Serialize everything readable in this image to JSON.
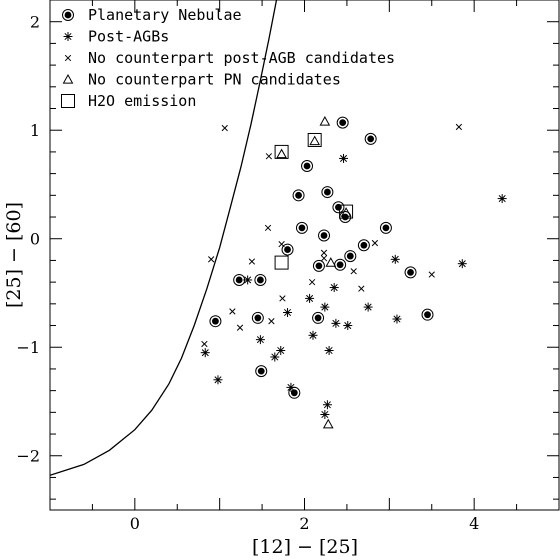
{
  "chart_data": {
    "type": "scatter",
    "xlabel": "[12] − [25]",
    "ylabel": "[25] − [60]",
    "xlim": [
      -1,
      5
    ],
    "ylim": [
      -2.5,
      2.2
    ],
    "xticks": [
      0,
      2,
      4
    ],
    "yticks": [
      -2,
      -1,
      0,
      1,
      2
    ],
    "legend_position": "top-left",
    "grid": false,
    "series": [
      {
        "name": "Planetary Nebulae",
        "marker": "circled-dot",
        "points": [
          [
            2.45,
            1.07
          ],
          [
            2.78,
            0.92
          ],
          [
            2.03,
            0.67
          ],
          [
            1.93,
            0.4
          ],
          [
            2.27,
            0.43
          ],
          [
            2.4,
            0.29
          ],
          [
            2.48,
            0.2
          ],
          [
            1.97,
            0.1
          ],
          [
            2.96,
            0.1
          ],
          [
            1.8,
            -0.1
          ],
          [
            2.23,
            0.03
          ],
          [
            2.7,
            -0.06
          ],
          [
            2.54,
            -0.16
          ],
          [
            2.17,
            -0.25
          ],
          [
            2.42,
            -0.24
          ],
          [
            3.25,
            -0.31
          ],
          [
            1.23,
            -0.38
          ],
          [
            1.48,
            -0.38
          ],
          [
            0.95,
            -0.76
          ],
          [
            1.45,
            -0.73
          ],
          [
            2.16,
            -0.73
          ],
          [
            3.45,
            -0.7
          ],
          [
            1.49,
            -1.22
          ],
          [
            1.88,
            -1.42
          ]
        ]
      },
      {
        "name": "Post-AGBs",
        "marker": "asterisk",
        "points": [
          [
            2.46,
            0.74
          ],
          [
            4.33,
            0.37
          ],
          [
            1.33,
            -0.38
          ],
          [
            3.07,
            -0.19
          ],
          [
            3.86,
            -0.23
          ],
          [
            2.06,
            -0.55
          ],
          [
            2.35,
            -0.45
          ],
          [
            2.24,
            -0.63
          ],
          [
            2.75,
            -0.63
          ],
          [
            1.48,
            -0.93
          ],
          [
            1.8,
            -0.68
          ],
          [
            2.1,
            -0.89
          ],
          [
            2.37,
            -0.78
          ],
          [
            2.51,
            -0.8
          ],
          [
            3.09,
            -0.74
          ],
          [
            1.72,
            -1.03
          ],
          [
            1.65,
            -1.09
          ],
          [
            0.83,
            -1.05
          ],
          [
            2.29,
            -1.03
          ],
          [
            0.98,
            -1.3
          ],
          [
            1.84,
            -1.37
          ],
          [
            2.27,
            -1.53
          ],
          [
            2.24,
            -1.62
          ]
        ]
      },
      {
        "name": "No counterpart post-AGB candidates",
        "marker": "cross",
        "points": [
          [
            1.06,
            1.02
          ],
          [
            1.58,
            0.76
          ],
          [
            3.82,
            1.03
          ],
          [
            1.57,
            0.1
          ],
          [
            1.73,
            -0.05
          ],
          [
            0.9,
            -0.19
          ],
          [
            1.38,
            -0.21
          ],
          [
            2.23,
            -0.13
          ],
          [
            2.83,
            -0.04
          ],
          [
            2.58,
            -0.3
          ],
          [
            2.67,
            -0.46
          ],
          [
            3.5,
            -0.33
          ],
          [
            1.74,
            -0.55
          ],
          [
            1.15,
            -0.67
          ],
          [
            1.24,
            -0.82
          ],
          [
            1.61,
            -0.76
          ],
          [
            0.82,
            -0.97
          ],
          [
            2.09,
            -0.4
          ],
          [
            2.23,
            -0.18
          ]
        ]
      },
      {
        "name": "No counterpart PN candidates",
        "marker": "triangle",
        "points": [
          [
            2.24,
            1.08
          ],
          [
            1.73,
            0.78
          ],
          [
            2.12,
            0.9
          ],
          [
            2.49,
            0.24
          ],
          [
            2.31,
            -0.22
          ],
          [
            2.28,
            -1.71
          ]
        ]
      },
      {
        "name": "H2O emission",
        "marker": "square",
        "points": [
          [
            1.73,
            0.8
          ],
          [
            2.12,
            0.91
          ],
          [
            2.49,
            0.25
          ],
          [
            1.73,
            -0.22
          ]
        ]
      }
    ],
    "curve": [
      [
        -1.0,
        -2.18
      ],
      [
        -0.6,
        -2.08
      ],
      [
        -0.3,
        -1.95
      ],
      [
        0.0,
        -1.76
      ],
      [
        0.2,
        -1.58
      ],
      [
        0.4,
        -1.34
      ],
      [
        0.55,
        -1.1
      ],
      [
        0.7,
        -0.8
      ],
      [
        0.85,
        -0.46
      ],
      [
        1.0,
        -0.08
      ],
      [
        1.12,
        0.27
      ],
      [
        1.25,
        0.66
      ],
      [
        1.37,
        1.06
      ],
      [
        1.48,
        1.46
      ],
      [
        1.58,
        1.84
      ],
      [
        1.67,
        2.2
      ]
    ]
  }
}
